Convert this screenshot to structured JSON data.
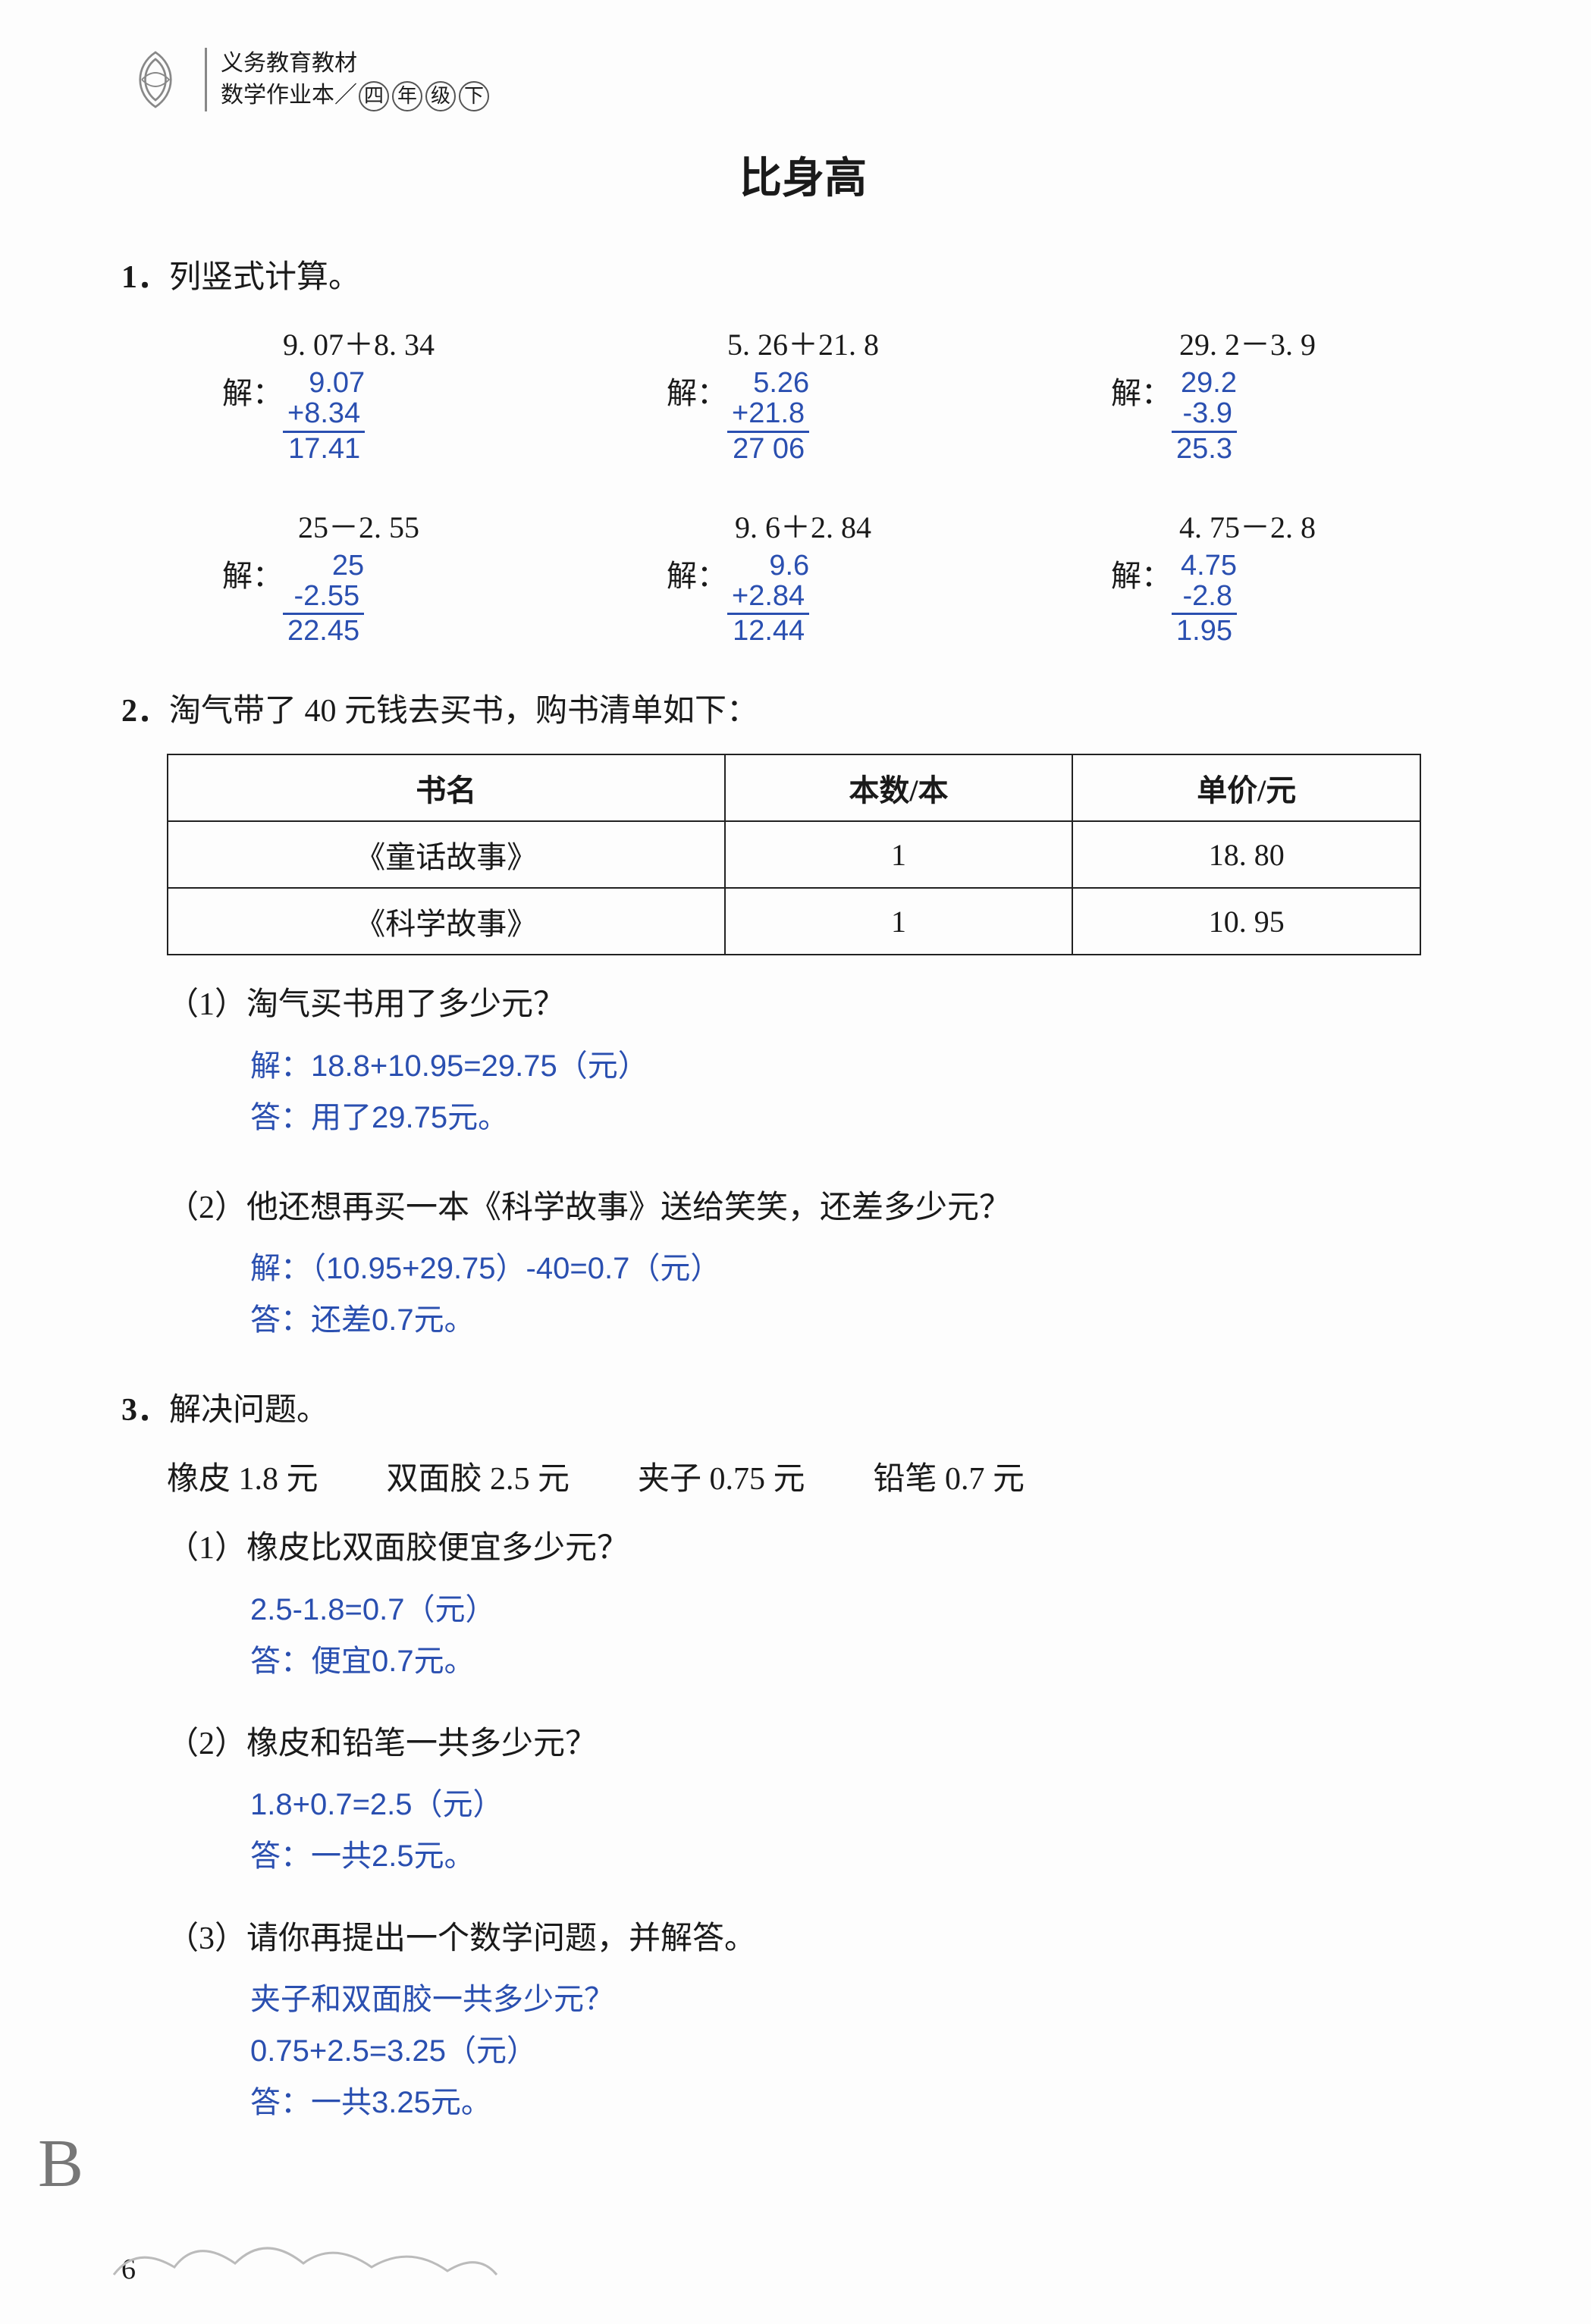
{
  "header": {
    "line1": "义务教育教材",
    "line2_a": "数学作业本／",
    "grade1": "四",
    "grade2": "年",
    "grade3": "级",
    "vol": "下"
  },
  "title": "比身高",
  "p1": {
    "num": "1．",
    "text": "列竖式计算。",
    "calcs": [
      [
        {
          "expr": "9. 07＋8. 34",
          "label": "解：",
          "l1": "9.07",
          "l2": "+8.34",
          "res": "17.41"
        },
        {
          "expr": "5. 26＋21. 8",
          "label": "解：",
          "l1": "5.26",
          "l2": "+21.8 ",
          "res": "27 06"
        },
        {
          "expr": "29. 2－3. 9",
          "label": "解：",
          "l1": "29.2",
          "l2": "-3.9",
          "res": "25.3"
        }
      ],
      [
        {
          "expr": "25－2. 55",
          "label": "解：",
          "l1": "25   ",
          "l2": "-2.55",
          "res": "22.45"
        },
        {
          "expr": "9. 6＋2. 84",
          "label": "解：",
          "l1": "9.6 ",
          "l2": "+2.84",
          "res": "12.44"
        },
        {
          "expr": "4. 75－2. 8",
          "label": "解：",
          "l1": "4.75",
          "l2": "-2.8 ",
          "res": "1.95"
        }
      ]
    ]
  },
  "p2": {
    "num": "2．",
    "text": "淘气带了 40 元钱去买书，购书清单如下：",
    "table": {
      "headers": [
        "书名",
        "本数/本",
        "单价/元"
      ],
      "rows": [
        [
          "《童话故事》",
          "1",
          "18. 80"
        ],
        [
          "《科学故事》",
          "1",
          "10. 95"
        ]
      ]
    },
    "q1": {
      "label": "（1）",
      "text": "淘气买书用了多少元？",
      "sol": "解：18.8+10.95=29.75（元）",
      "ans": "答：用了29.75元。"
    },
    "q2": {
      "label": "（2）",
      "text": "他还想再买一本《科学故事》送给笑笑，还差多少元？",
      "sol": "解：（10.95+29.75）-40=0.7（元）",
      "ans": "答：还差0.7元。"
    }
  },
  "p3": {
    "num": "3．",
    "text": "解决问题。",
    "items": [
      "橡皮 1.8 元",
      "双面胶 2.5 元",
      "夹子 0.75 元",
      "铅笔 0.7 元"
    ],
    "q1": {
      "label": "（1）",
      "text": "橡皮比双面胶便宜多少元？",
      "sol": "2.5-1.8=0.7（元）",
      "ans": "答：便宜0.7元。"
    },
    "q2": {
      "label": "（2）",
      "text": "橡皮和铅笔一共多少元？",
      "sol": "1.8+0.7=2.5（元）",
      "ans": "答：一共2.5元。"
    },
    "q3": {
      "label": "（3）",
      "text": "请你再提出一个数学问题，并解答。",
      "q": "夹子和双面胶一共多少元？",
      "sol": "0.75+2.5=3.25（元）",
      "ans": "答：一共3.25元。"
    }
  },
  "page_number": "6",
  "corner_letter": "B",
  "colors": {
    "answer": "#2a4fb0",
    "text": "#1a1a1a"
  }
}
